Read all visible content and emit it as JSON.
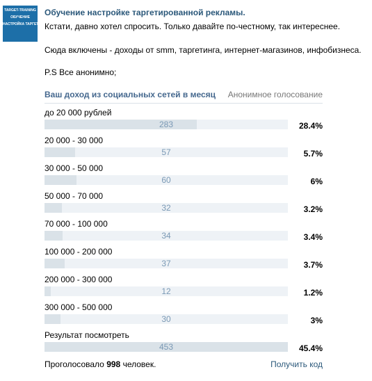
{
  "avatar": {
    "brand": "TARGET-TRAINING",
    "line1": "ОБУЧЕНИЕ",
    "line2": "НАСТРОЙКА ТАРГЕТИНГА"
  },
  "post": {
    "title": "Обучение настройке таргетированной рекламы.",
    "paragraphs": [
      "Кстати, давно хотел спросить. Только давайте по-честному, так интереснее.",
      "Сюда включены - доходы от smm, таргетинга, интернет-магазинов, инфобизнеса.",
      "P.S Все анонимно;"
    ]
  },
  "poll": {
    "question": "Ваш доход из социальных сетей в месяц",
    "mode": "Анонимное голосование",
    "options": [
      {
        "label": "до 20 000 рублей",
        "votes": 283,
        "percent": "28.4%"
      },
      {
        "label": "20 000 - 30 000",
        "votes": 57,
        "percent": "5.7%"
      },
      {
        "label": "30 000 - 50 000",
        "votes": 60,
        "percent": "6%"
      },
      {
        "label": "50 000 - 70 000",
        "votes": 32,
        "percent": "3.2%"
      },
      {
        "label": "70 000 - 100 000",
        "votes": 34,
        "percent": "3.4%"
      },
      {
        "label": "100 000 - 200 000",
        "votes": 37,
        "percent": "3.7%"
      },
      {
        "label": "200 000 - 300 000",
        "votes": 12,
        "percent": "1.2%"
      },
      {
        "label": "300 000 - 500 000",
        "votes": 30,
        "percent": "3%"
      },
      {
        "label": "Результат посмотреть",
        "votes": 453,
        "percent": "45.4%"
      }
    ],
    "voted_prefix": "Проголосовало",
    "total": 998,
    "voted_suffix": "человек.",
    "get_code": "Получить код"
  }
}
